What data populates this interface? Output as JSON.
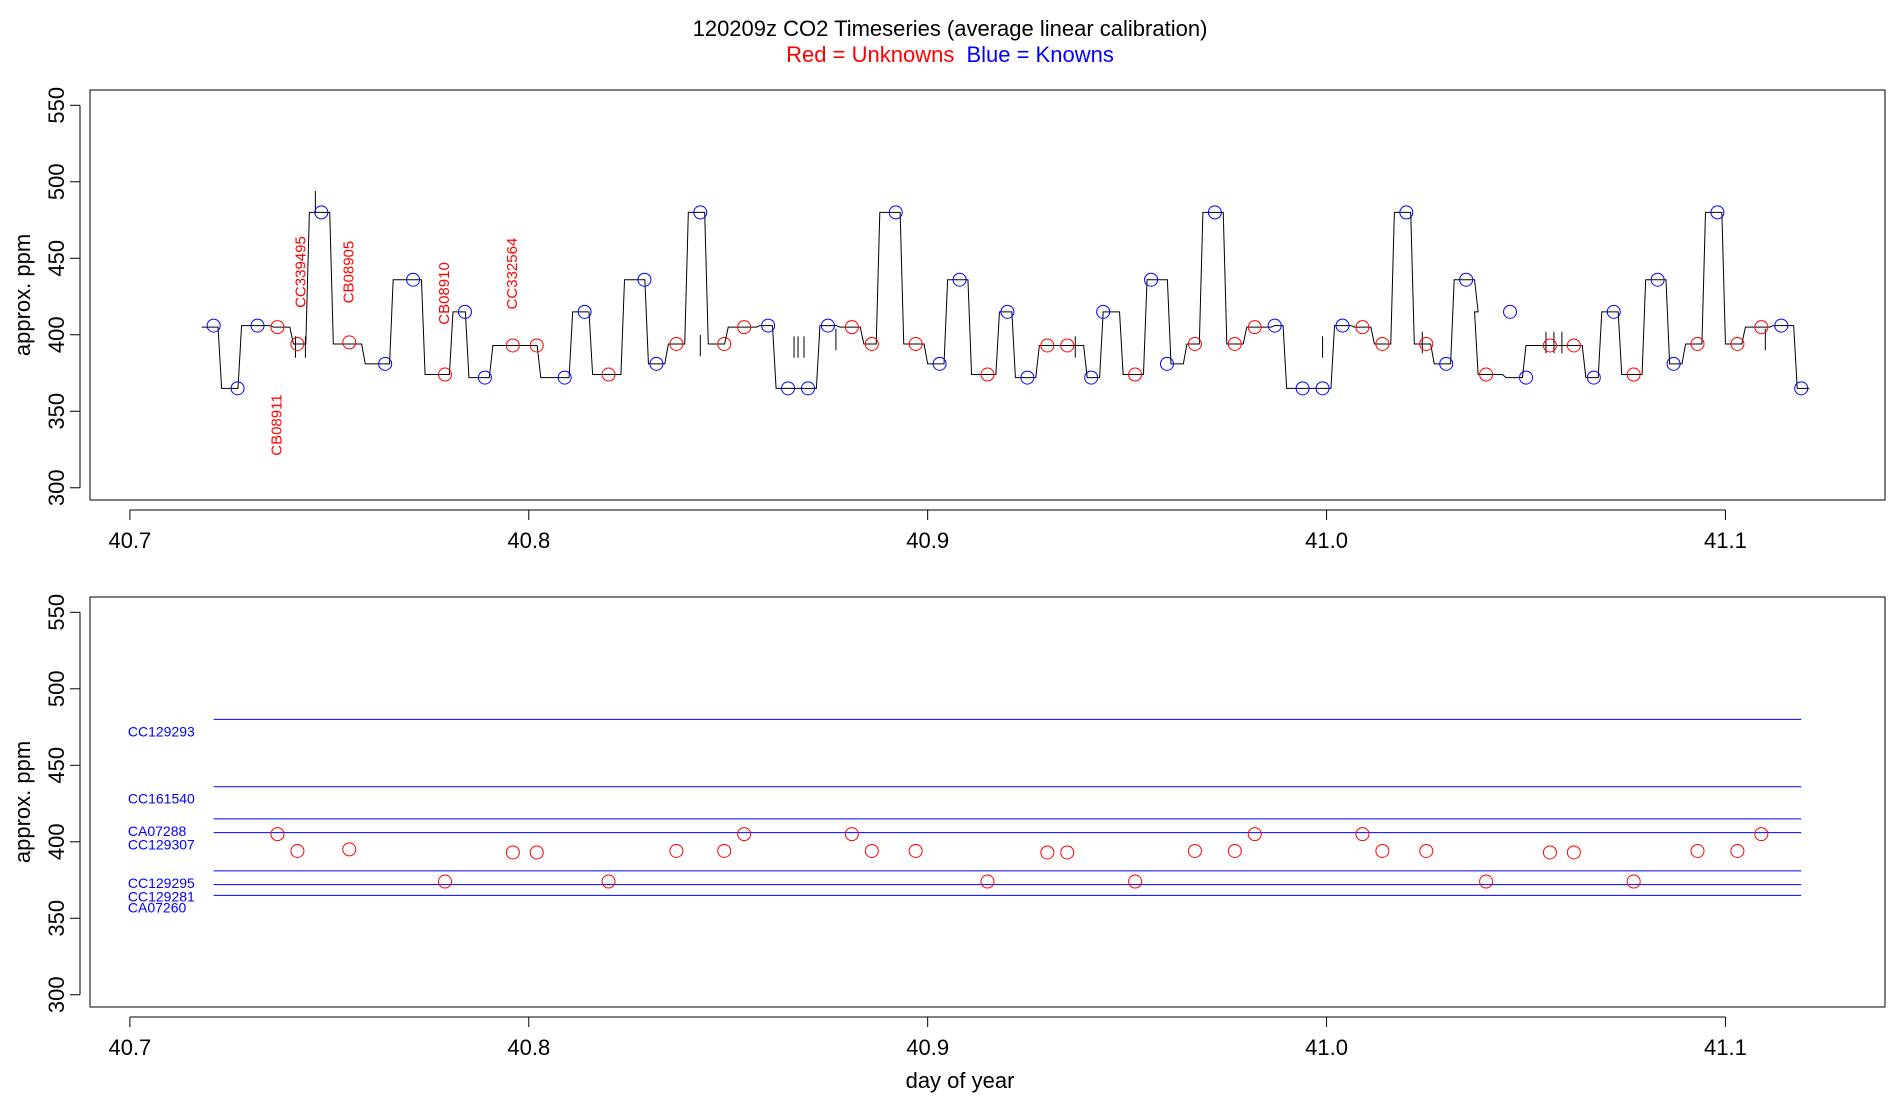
{
  "title": "120209z   CO2 Timeseries (average linear calibration)",
  "legend": {
    "red_label": "Red = Unknowns",
    "blue_label": "Blue = Knowns"
  },
  "colors": {
    "unknown": "#ff0000",
    "known": "#0000ff",
    "trace": "#000000",
    "axis": "#000000"
  },
  "chart_data": [
    {
      "type": "line",
      "panel": "top",
      "title": "120209z   CO2 Timeseries (average linear calibration)",
      "xlabel": "",
      "ylabel": "approx. ppm",
      "xlim": [
        40.69,
        41.14
      ],
      "ylim": [
        292,
        560
      ],
      "x_ticks": [
        40.7,
        40.8,
        40.9,
        41.0,
        41.1
      ],
      "x_tick_labels": [
        "40.7",
        "40.8",
        "40.9",
        "41.0",
        "41.1"
      ],
      "y_ticks": [
        300,
        350,
        400,
        450,
        500,
        550
      ],
      "y_tick_labels": [
        "300",
        "350",
        "400",
        "450",
        "500",
        "550"
      ],
      "grid": false,
      "trace_levels": [
        [
          40.718,
          405
        ],
        [
          40.723,
          365
        ],
        [
          40.728,
          406
        ],
        [
          40.736,
          405
        ],
        [
          40.741,
          394
        ],
        [
          40.745,
          480
        ],
        [
          40.751,
          394
        ],
        [
          40.759,
          381
        ],
        [
          40.766,
          436
        ],
        [
          40.774,
          374
        ],
        [
          40.781,
          415
        ],
        [
          40.785,
          372
        ],
        [
          40.791,
          393
        ],
        [
          40.803,
          372
        ],
        [
          40.811,
          415
        ],
        [
          40.816,
          374
        ],
        [
          40.824,
          436
        ],
        [
          40.83,
          381
        ],
        [
          40.835,
          394
        ],
        [
          40.84,
          480
        ],
        [
          40.845,
          394
        ],
        [
          40.85,
          405
        ],
        [
          40.858,
          406
        ],
        [
          40.862,
          365
        ],
        [
          40.873,
          406
        ],
        [
          40.878,
          405
        ],
        [
          40.884,
          394
        ],
        [
          40.888,
          480
        ],
        [
          40.894,
          394
        ],
        [
          40.9,
          381
        ],
        [
          40.905,
          436
        ],
        [
          40.911,
          374
        ],
        [
          40.918,
          415
        ],
        [
          40.922,
          372
        ],
        [
          40.928,
          393
        ],
        [
          40.937,
          393
        ],
        [
          40.94,
          372
        ],
        [
          40.944,
          415
        ],
        [
          40.949,
          374
        ],
        [
          40.955,
          436
        ],
        [
          40.961,
          381
        ],
        [
          40.965,
          394
        ],
        [
          40.969,
          480
        ],
        [
          40.975,
          394
        ],
        [
          40.98,
          405
        ],
        [
          40.987,
          406
        ],
        [
          40.99,
          365
        ],
        [
          41.002,
          406
        ],
        [
          41.007,
          405
        ],
        [
          41.012,
          394
        ],
        [
          41.017,
          480
        ],
        [
          41.022,
          394
        ],
        [
          41.027,
          381
        ],
        [
          41.032,
          436
        ],
        [
          41.038,
          415
        ],
        [
          41.038,
          374
        ],
        [
          41.045,
          372
        ],
        [
          41.05,
          393
        ],
        [
          41.065,
          372
        ],
        [
          41.069,
          415
        ],
        [
          41.074,
          374
        ],
        [
          41.08,
          436
        ],
        [
          41.086,
          381
        ],
        [
          41.09,
          394
        ],
        [
          41.095,
          480
        ],
        [
          41.1,
          394
        ],
        [
          41.105,
          405
        ],
        [
          41.112,
          406
        ],
        [
          41.118,
          365
        ]
      ],
      "unknowns": {
        "x": [
          40.737,
          40.742,
          40.755,
          40.779,
          40.796,
          40.802,
          40.82,
          40.837,
          40.849,
          40.854,
          40.881,
          40.886,
          40.897,
          40.915,
          40.93,
          40.935,
          40.952,
          40.967,
          40.977,
          40.982,
          41.009,
          41.014,
          41.025,
          41.04,
          41.056,
          41.062,
          41.077,
          41.093,
          41.103,
          41.109
        ],
        "y": [
          405,
          394,
          395,
          374,
          393,
          393,
          374,
          394,
          394,
          405,
          405,
          394,
          394,
          374,
          393,
          393,
          374,
          394,
          394,
          405,
          405,
          394,
          394,
          374,
          393,
          393,
          374,
          394,
          394,
          405
        ]
      },
      "knowns": {
        "x": [
          40.721,
          40.727,
          40.732,
          40.748,
          40.764,
          40.771,
          40.784,
          40.789,
          40.809,
          40.814,
          40.829,
          40.832,
          40.843,
          40.86,
          40.865,
          40.87,
          40.875,
          40.892,
          40.903,
          40.908,
          40.92,
          40.925,
          40.944,
          40.941,
          40.956,
          40.96,
          40.972,
          40.987,
          40.994,
          40.999,
          41.004,
          41.02,
          41.03,
          41.035,
          41.046,
          41.05,
          41.067,
          41.072,
          41.083,
          41.087,
          41.098,
          41.114,
          41.119
        ],
        "y": [
          406,
          365,
          406,
          480,
          381,
          436,
          415,
          372,
          372,
          415,
          436,
          381,
          480,
          406,
          365,
          365,
          406,
          480,
          381,
          436,
          415,
          372,
          415,
          372,
          436,
          381,
          480,
          406,
          365,
          365,
          406,
          480,
          381,
          436,
          415,
          372,
          372,
          415,
          436,
          381,
          480,
          406,
          365
        ]
      },
      "annotations": [
        {
          "text": "CB08911",
          "x": 40.738,
          "y": 341
        },
        {
          "text": "CC339495",
          "x": 40.744,
          "y": 441
        },
        {
          "text": "CB08905",
          "x": 40.756,
          "y": 441
        },
        {
          "text": "CB08910",
          "x": 40.78,
          "y": 427
        },
        {
          "text": "CC332564",
          "x": 40.797,
          "y": 440
        }
      ]
    },
    {
      "type": "scatter",
      "panel": "bottom",
      "xlabel": "day of year",
      "ylabel": "approx. ppm",
      "xlim": [
        40.69,
        41.14
      ],
      "ylim": [
        292,
        560
      ],
      "x_ticks": [
        40.7,
        40.8,
        40.9,
        41.0,
        41.1
      ],
      "x_tick_labels": [
        "40.7",
        "40.8",
        "40.9",
        "41.0",
        "41.1"
      ],
      "y_ticks": [
        300,
        350,
        400,
        450,
        500,
        550
      ],
      "y_tick_labels": [
        "300",
        "350",
        "400",
        "450",
        "500",
        "550"
      ],
      "grid": false,
      "reference_lines": [
        {
          "name": "CC129293",
          "value": 480
        },
        {
          "name": "CC161540",
          "value": 436
        },
        {
          "name": "CA07288",
          "value": 415
        },
        {
          "name": "CC129307",
          "value": 406
        },
        {
          "name": "CC129295",
          "value": 381
        },
        {
          "name": "CC129281",
          "value": 372
        },
        {
          "name": "CA07260",
          "value": 365
        }
      ],
      "reference_line_x_range": [
        40.721,
        41.119
      ],
      "unknowns": {
        "x": [
          40.737,
          40.742,
          40.755,
          40.779,
          40.796,
          40.802,
          40.82,
          40.837,
          40.849,
          40.854,
          40.881,
          40.886,
          40.897,
          40.915,
          40.93,
          40.935,
          40.952,
          40.967,
          40.977,
          40.982,
          41.009,
          41.014,
          41.025,
          41.04,
          41.056,
          41.062,
          41.077,
          41.093,
          41.103,
          41.109
        ],
        "y": [
          405,
          394,
          395,
          374,
          393,
          393,
          374,
          394,
          394,
          405,
          405,
          394,
          394,
          374,
          393,
          393,
          374,
          394,
          394,
          405,
          405,
          394,
          394,
          374,
          393,
          393,
          374,
          394,
          394,
          405
        ]
      }
    }
  ]
}
